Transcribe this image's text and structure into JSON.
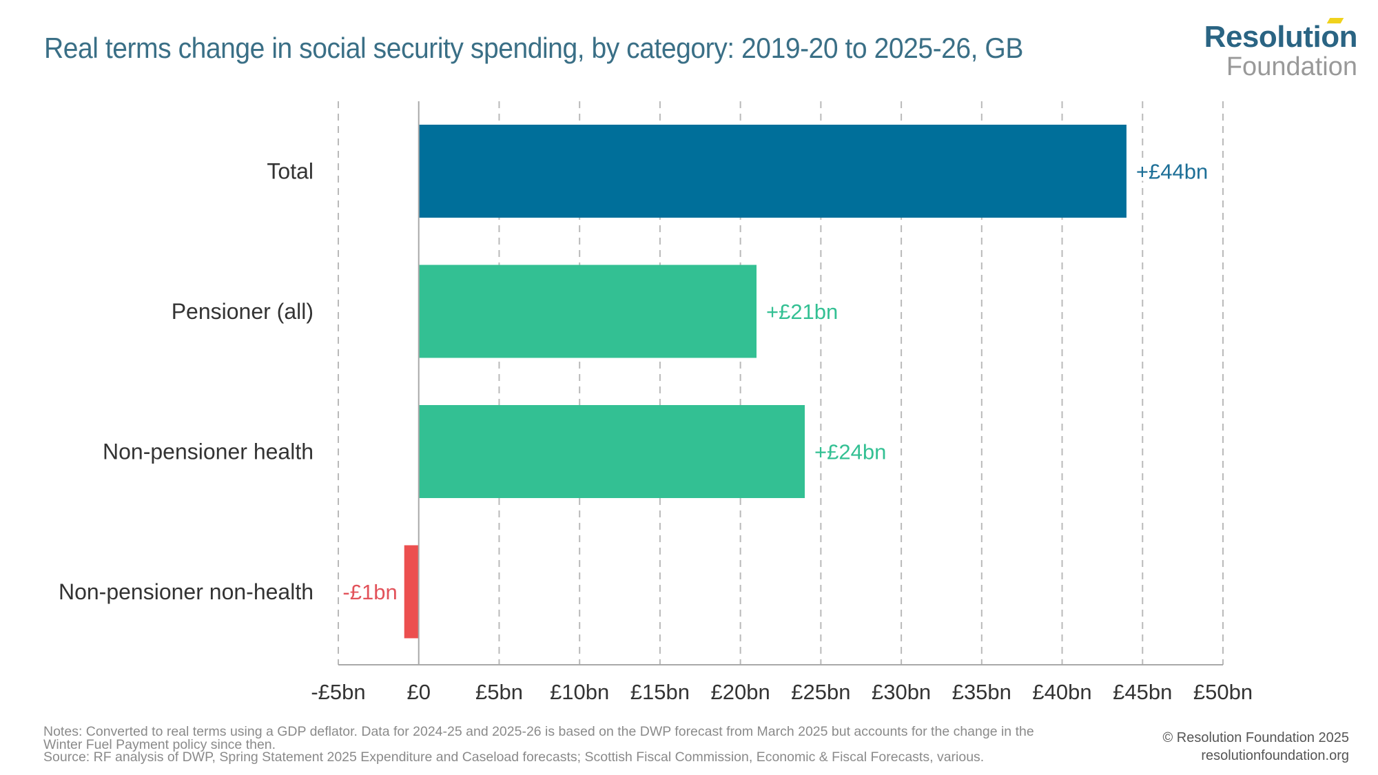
{
  "header": {
    "title": "Real terms change in social security spending, by category: 2019-20 to 2025-26, GB"
  },
  "logo": {
    "line1": "Resolution",
    "line2": "Foundation",
    "colors": {
      "primary": "#2a6483",
      "secondary": "#999999",
      "accent": "#f0d21c"
    }
  },
  "chart_data": {
    "type": "bar",
    "orientation": "horizontal",
    "title": "Real terms change in social security spending, by category: 2019-20 to 2025-26, GB",
    "xlabel": "",
    "ylabel": "",
    "xlim": [
      -5,
      50
    ],
    "x_ticks": [
      -5,
      0,
      5,
      10,
      15,
      20,
      25,
      30,
      35,
      40,
      45,
      50
    ],
    "x_tick_labels": [
      "-£5bn",
      "£0",
      "£5bn",
      "£10bn",
      "£15bn",
      "£20bn",
      "£25bn",
      "£30bn",
      "£35bn",
      "£40bn",
      "£45bn",
      "£50bn"
    ],
    "grid": "vertical dashed",
    "units": "£bn",
    "categories": [
      "Total",
      "Pensioner (all)",
      "Non-pensioner health",
      "Non-pensioner non-health"
    ],
    "values": [
      44,
      21,
      24,
      -0.9
    ],
    "data_labels": [
      "+£44bn",
      "+£21bn",
      "+£24bn",
      "-£1bn"
    ],
    "colors": [
      "#006f9a",
      "#33c093",
      "#33c093",
      "#ec4f4f"
    ],
    "label_colors": [
      "#1d6f97",
      "#33c093",
      "#33c093",
      "#e2525a"
    ]
  },
  "footer": {
    "notes_line1": "Notes: Converted to real terms using a GDP deflator. Data for 2024-25 and 2025-26 is based on the DWP forecast from March 2025 but accounts for the change in the",
    "notes_line2": "Winter Fuel Payment policy since then.",
    "source": "Source: RF analysis of DWP, Spring Statement 2025 Expenditure and Caseload forecasts; Scottish Fiscal Commission, Economic & Fiscal Forecasts, various.",
    "copyright": "© Resolution Foundation 2025",
    "website": "resolutionfoundation.org"
  }
}
